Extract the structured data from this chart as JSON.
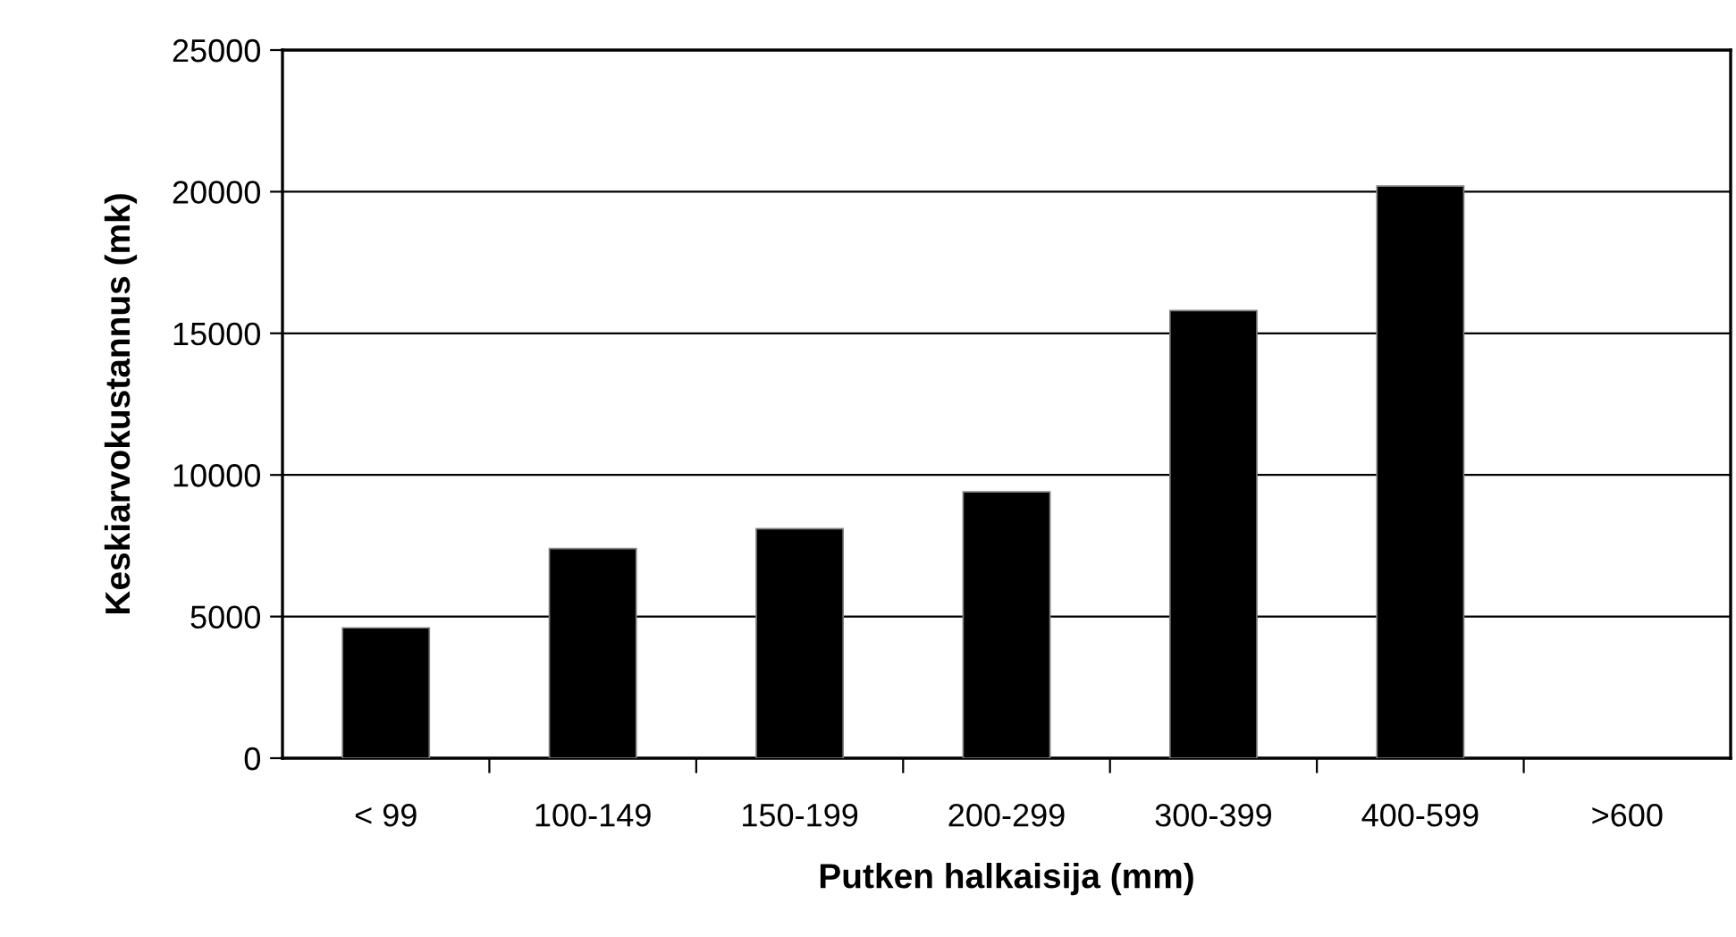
{
  "chart_data": {
    "type": "bar",
    "xlabel": "Putken halkaisija (mm)",
    "ylabel": "Keskiarvokustannus (mk)",
    "categories": [
      "< 99",
      "100-149",
      "150-199",
      "200-299",
      "300-399",
      "400-599",
      ">600"
    ],
    "values": [
      4600,
      7400,
      8100,
      9400,
      15800,
      20200,
      null
    ],
    "color": "#000000",
    "ylim": [
      0,
      25000
    ],
    "yticks": [
      0,
      5000,
      10000,
      15000,
      20000,
      25000
    ],
    "grid": "y",
    "legend": false
  }
}
